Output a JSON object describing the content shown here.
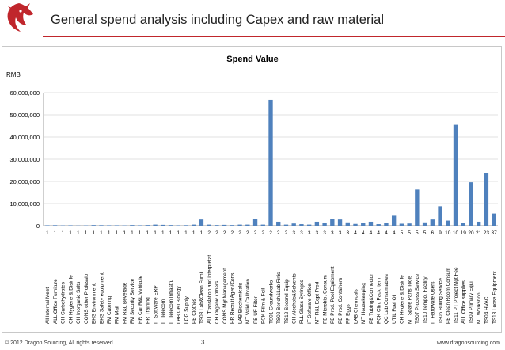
{
  "header": {
    "title": "General spend analysis including Capex and raw material"
  },
  "footer": {
    "copyright": "© 2012 Dragon Sourcing, All rights reserved.",
    "page_number": "3",
    "url": "www.dragonsourcing.com"
  },
  "brand": {
    "logo_icon": "dragon-logo-icon",
    "accent": "#c0262c",
    "bar_color": "#4f81bd"
  },
  "chart_data": {
    "type": "bar",
    "title": "Spend Value",
    "ylabel": "RMB",
    "ylim": [
      0,
      60000000
    ],
    "yticks": [
      "0",
      "10,000,000",
      "20,000,000",
      "30,000,000",
      "40,000,000",
      "50,000,000",
      "60,000,000"
    ],
    "grid": true,
    "legend": "none",
    "categories": [
      "All Internal Meet",
      "ALL Office Furniture",
      "CH Carbohydrates",
      "CH Hygiene & Disinfe",
      "CH Inorganic Salts",
      "CONS other Professio",
      "EHS Environment",
      "EHS Safety equipment",
      "FM Catering",
      "FM Mail",
      "FM R&L Beverage",
      "FM Security Service",
      "HR Car R&L Vehicule",
      "HR Training",
      "IT SoftWare ERP",
      "IT Telecom",
      "IT Telecom Infrastru",
      "LAB Cell Biology",
      "LOG Supply",
      "PB Clothes",
      "TS03 Lab&Clean Furni",
      "ALL Translation and interpretat",
      "CH Organic Others",
      "CONS Mgt Management",
      "HR Recruit Agen/Cons",
      "LAB Biochemicals",
      "MT Valid Calibration",
      "PB UF Filter",
      "PCK Film & Foil",
      "TS01 Groundworks",
      "TS02 Bench&Lab Finis",
      "TS12 Second Equip",
      "CH Alcohols&Solvents",
      "FLL Glass Syringes",
      "IT Software Office",
      "MT R&L Eqpt Prod",
      "PB Microbio. Consum",
      "PB Prod. Pool Equipment",
      "PB Prod. Containers",
      "PP Eggs",
      "LAB Chemicals",
      "MT Housekeeping",
      "PB Tubing&Connector",
      "PCK Clin. Pack Item",
      "QC Lab Consumables",
      "UTIL Fuel Oil",
      "CH Hygiene & Disinfe",
      "MT Spare Parts Tools",
      "TS07 Process Service",
      "TS10 Tempo. Facility",
      "IT Hardware Users",
      "TS05 Buildg Service",
      "PB Clean Room Consum",
      "TS11 PT Project Mgt Fee",
      "ALL Office supplies",
      "TS09 Primary Equi",
      "MT Workshop",
      "TS04 HVAC",
      "TS13 Loose Equipment"
    ],
    "counts": [
      "1",
      "1",
      "1",
      "1",
      "1",
      "1",
      "1",
      "1",
      "1",
      "1",
      "1",
      "1",
      "1",
      "1",
      "1",
      "1",
      "1",
      "1",
      "1",
      "1",
      "1",
      "2",
      "2",
      "2",
      "2",
      "2",
      "2",
      "2",
      "2",
      "2",
      "2",
      "2",
      "3",
      "3",
      "3",
      "3",
      "3",
      "3",
      "3",
      "3",
      "4",
      "4",
      "4",
      "4",
      "4",
      "4",
      "5",
      "5",
      "5",
      "5",
      "6",
      "9",
      "10",
      "10",
      "19",
      "20",
      "21",
      "23",
      "37"
    ],
    "values": [
      200000,
      250000,
      150000,
      200000,
      100000,
      150000,
      300000,
      250000,
      200000,
      200000,
      150000,
      300000,
      200000,
      300000,
      500000,
      400000,
      300000,
      200000,
      250000,
      500000,
      2800000,
      500000,
      300000,
      400000,
      300000,
      500000,
      500000,
      3100000,
      500000,
      56800000,
      1800000,
      500000,
      1000000,
      700000,
      500000,
      1800000,
      1400000,
      3200000,
      2800000,
      1500000,
      800000,
      1100000,
      1800000,
      700000,
      1200000,
      4500000,
      900000,
      1000000,
      16300000,
      1500000,
      2800000,
      8800000,
      2300000,
      45500000,
      1200000,
      19600000,
      1800000,
      23900000,
      5500000
    ]
  }
}
